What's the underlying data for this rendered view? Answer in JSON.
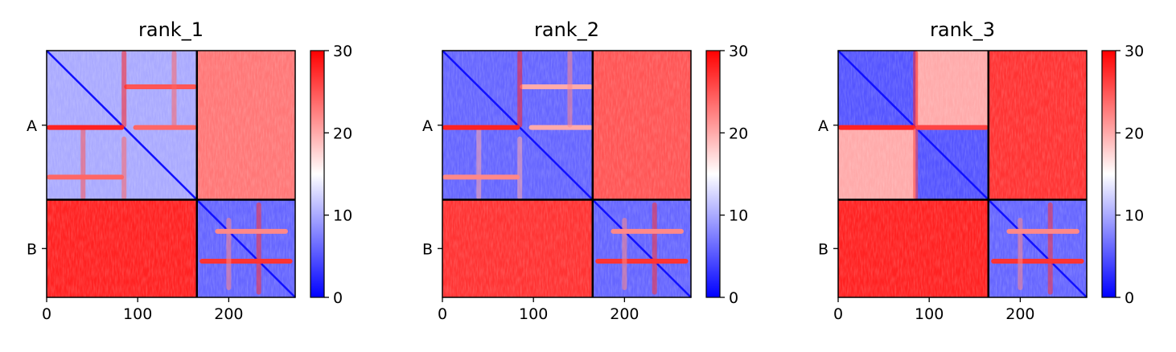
{
  "chart_data": [
    {
      "type": "heatmap",
      "title": "rank_1",
      "chains": [
        {
          "label": "A",
          "start": 0,
          "end": 165
        },
        {
          "label": "B",
          "start": 165,
          "end": 273
        }
      ],
      "xlim": [
        0,
        273
      ],
      "xticks": [
        0,
        100,
        200
      ],
      "xticklabels": [
        "0",
        "100",
        "200"
      ],
      "yticklabels": [
        "A",
        "B"
      ],
      "colorbar": {
        "min": 0,
        "max": 30,
        "ticks": [
          0,
          10,
          20,
          30
        ],
        "ticklabels": [
          "0",
          "10",
          "20",
          "30"
        ],
        "colors": [
          "#0000ff",
          "#ffffff",
          "#ff0000"
        ]
      },
      "blocks": {
        "AA": 10,
        "AB": 23,
        "BA": 28,
        "BB": 6
      },
      "split_x": 0,
      "features": [
        {
          "row": 40,
          "from": 85,
          "to": 165,
          "value": 25
        },
        {
          "row": 85,
          "from": 0,
          "to": 85,
          "value": 28
        },
        {
          "row": 85,
          "from": 95,
          "to": 165,
          "value": 24
        },
        {
          "row": 140,
          "from": 0,
          "to": 85,
          "value": 24
        },
        {
          "row": 233,
          "from": 168,
          "to": 270,
          "value": 27
        },
        {
          "row": 200,
          "from": 185,
          "to": 265,
          "value": 22
        }
      ]
    },
    {
      "type": "heatmap",
      "title": "rank_2",
      "chains": [
        {
          "label": "A",
          "start": 0,
          "end": 165
        },
        {
          "label": "B",
          "start": 165,
          "end": 273
        }
      ],
      "xlim": [
        0,
        273
      ],
      "xticks": [
        0,
        100,
        200
      ],
      "xticklabels": [
        "0",
        "100",
        "200"
      ],
      "yticklabels": [
        "A",
        "B"
      ],
      "colorbar": {
        "min": 0,
        "max": 30,
        "ticks": [
          0,
          10,
          20,
          30
        ],
        "ticklabels": [
          "0",
          "10",
          "20",
          "30"
        ],
        "colors": [
          "#0000ff",
          "#ffffff",
          "#ff0000"
        ]
      },
      "blocks": {
        "AA": 6,
        "AB": 25,
        "BA": 27,
        "BB": 6
      },
      "split_x": 0,
      "features": [
        {
          "row": 40,
          "from": 85,
          "to": 165,
          "value": 20
        },
        {
          "row": 85,
          "from": 0,
          "to": 85,
          "value": 28
        },
        {
          "row": 85,
          "from": 95,
          "to": 165,
          "value": 20
        },
        {
          "row": 140,
          "from": 0,
          "to": 85,
          "value": 22
        },
        {
          "row": 233,
          "from": 168,
          "to": 270,
          "value": 27
        },
        {
          "row": 200,
          "from": 185,
          "to": 265,
          "value": 22
        }
      ]
    },
    {
      "type": "heatmap",
      "title": "rank_3",
      "chains": [
        {
          "label": "A",
          "start": 0,
          "end": 165
        },
        {
          "label": "B",
          "start": 165,
          "end": 273
        }
      ],
      "xlim": [
        0,
        273
      ],
      "xticks": [
        0,
        100,
        200
      ],
      "xticklabels": [
        "0",
        "100",
        "200"
      ],
      "yticklabels": [
        "A",
        "B"
      ],
      "colorbar": {
        "min": 0,
        "max": 30,
        "ticks": [
          0,
          10,
          20,
          30
        ],
        "ticklabels": [
          "0",
          "10",
          "20",
          "30"
        ],
        "colors": [
          "#0000ff",
          "#ffffff",
          "#ff0000"
        ]
      },
      "blocks": {
        "AA": 5,
        "AB": 27,
        "BA": 28,
        "BB": 6
      },
      "split_x": 85,
      "split_values": {
        "top_right": 20,
        "bottom_left": 20
      },
      "features": [
        {
          "row": 85,
          "from": 0,
          "to": 85,
          "value": 28
        },
        {
          "row": 85,
          "from": 85,
          "to": 165,
          "value": 26
        },
        {
          "row": 233,
          "from": 168,
          "to": 270,
          "value": 27
        },
        {
          "row": 200,
          "from": 185,
          "to": 265,
          "value": 22
        }
      ]
    }
  ]
}
